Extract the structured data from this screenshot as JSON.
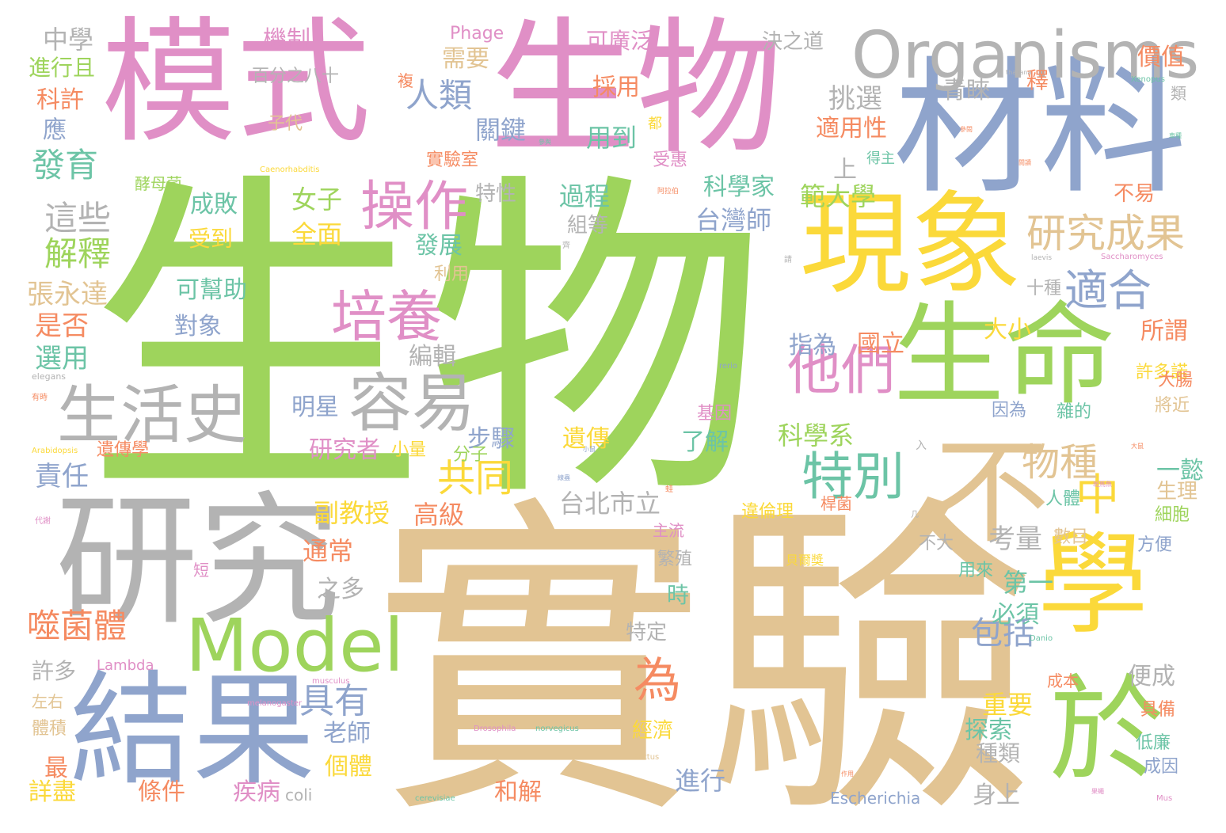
{
  "palette": {
    "green": "#9ED45C",
    "pink": "#E08FC6",
    "blue": "#8FA4CC",
    "gray": "#B3B3B3",
    "tan": "#E2C493",
    "yellow": "#FBD93A",
    "orange": "#F58B62",
    "teal": "#6CC4A6"
  },
  "words": [
    {
      "text": "生物",
      "color": "#9ED45C"
    },
    {
      "text": "實驗",
      "color": "#E2C493"
    },
    {
      "text": "模式",
      "color": "#E08FC6"
    },
    {
      "text": "生物",
      "color": "#E08FC6"
    },
    {
      "text": "材料",
      "color": "#8FA4CC"
    },
    {
      "text": "研究",
      "color": "#B3B3B3"
    },
    {
      "text": "結果",
      "color": "#8FA4CC"
    },
    {
      "text": "Model",
      "color": "#9ED45C"
    },
    {
      "text": "Organisms",
      "color": "#B3B3B3"
    },
    {
      "text": "現象",
      "color": "#FBD93A"
    },
    {
      "text": "生命",
      "color": "#9ED45C"
    },
    {
      "text": "不",
      "color": "#E2C493"
    },
    {
      "text": "學",
      "color": "#FBD93A"
    },
    {
      "text": "於",
      "color": "#9ED45C"
    },
    {
      "text": "生活史",
      "color": "#B3B3B3"
    },
    {
      "text": "容易",
      "color": "#B3B3B3"
    },
    {
      "text": "培養",
      "color": "#E08FC6"
    },
    {
      "text": "操作",
      "color": "#E08FC6"
    },
    {
      "text": "他們",
      "color": "#E08FC6"
    },
    {
      "text": "特別",
      "color": "#6CC4A6"
    },
    {
      "text": "研究成果",
      "color": "#E2C493"
    },
    {
      "text": "適合",
      "color": "#8FA4CC"
    },
    {
      "text": "中",
      "color": "#FBD93A"
    },
    {
      "text": "物種",
      "color": "#E2C493"
    },
    {
      "text": "為",
      "color": "#F58B62"
    },
    {
      "text": "人類",
      "color": "#8FA4CC"
    },
    {
      "text": "發育",
      "color": "#6CC4A6"
    },
    {
      "text": "這些",
      "color": "#B3B3B3"
    },
    {
      "text": "解釋",
      "color": "#9ED45C"
    },
    {
      "text": "噬菌體",
      "color": "#F58B62"
    },
    {
      "text": "具有",
      "color": "#8FA4CC"
    },
    {
      "text": "共同",
      "color": "#FBD93A"
    },
    {
      "text": "包括",
      "color": "#8FA4CC"
    },
    {
      "text": "張永達",
      "color": "#E2C493"
    },
    {
      "text": "是否",
      "color": "#F58B62"
    },
    {
      "text": "選用",
      "color": "#6CC4A6"
    },
    {
      "text": "責任",
      "color": "#8FA4CC"
    },
    {
      "text": "中學",
      "color": "#B3B3B3"
    },
    {
      "text": "進行且",
      "color": "#9ED45C"
    },
    {
      "text": "科許",
      "color": "#F58B62"
    },
    {
      "text": "應",
      "color": "#8FA4CC"
    },
    {
      "text": "機制",
      "color": "#E08FC6"
    },
    {
      "text": "百分之八十",
      "color": "#B3B3B3"
    },
    {
      "text": "Phage",
      "color": "#E08FC6"
    },
    {
      "text": "可廣泛",
      "color": "#E08FC6"
    },
    {
      "text": "決之道",
      "color": "#B3B3B3"
    },
    {
      "text": "價值",
      "color": "#F58B62"
    },
    {
      "text": "需要",
      "color": "#E2C493"
    },
    {
      "text": "採用",
      "color": "#F58B62"
    },
    {
      "text": "挑選",
      "color": "#B3B3B3"
    },
    {
      "text": "青睞",
      "color": "#B3B3B3"
    },
    {
      "text": "複",
      "color": "#F58B62"
    },
    {
      "text": "釋",
      "color": "#F58B62"
    },
    {
      "text": "類",
      "color": "#B3B3B3"
    },
    {
      "text": "子代",
      "color": "#E2C493"
    },
    {
      "text": "關鍵",
      "color": "#8FA4CC"
    },
    {
      "text": "用到",
      "color": "#6CC4A6"
    },
    {
      "text": "適用性",
      "color": "#F58B62"
    },
    {
      "text": "上",
      "color": "#B3B3B3"
    },
    {
      "text": "實驗室",
      "color": "#F58B62"
    },
    {
      "text": "受惠",
      "color": "#E08FC6"
    },
    {
      "text": "得主",
      "color": "#6CC4A6"
    },
    {
      "text": "酵母菌",
      "color": "#9ED45C"
    },
    {
      "text": "成敗",
      "color": "#6CC4A6"
    },
    {
      "text": "女子",
      "color": "#9ED45C"
    },
    {
      "text": "過程",
      "color": "#6CC4A6"
    },
    {
      "text": "科學家",
      "color": "#6CC4A6"
    },
    {
      "text": "範大學",
      "color": "#9ED45C"
    },
    {
      "text": "不易",
      "color": "#F58B62"
    },
    {
      "text": "特性",
      "color": "#B3B3B3"
    },
    {
      "text": "受到",
      "color": "#FBD93A"
    },
    {
      "text": "全面",
      "color": "#FBD93A"
    },
    {
      "text": "組等",
      "color": "#B3B3B3"
    },
    {
      "text": "台灣師",
      "color": "#8FA4CC"
    },
    {
      "text": "發展",
      "color": "#6CC4A6"
    },
    {
      "text": "利用",
      "color": "#E2C493"
    },
    {
      "text": "可幫助",
      "color": "#6CC4A6"
    },
    {
      "text": "對象",
      "color": "#8FA4CC"
    },
    {
      "text": "指為",
      "color": "#8FA4CC"
    },
    {
      "text": "國立",
      "color": "#F58B62"
    },
    {
      "text": "大小",
      "color": "#FBD93A"
    },
    {
      "text": "所謂",
      "color": "#F58B62"
    },
    {
      "text": "十種",
      "color": "#B3B3B3"
    },
    {
      "text": "編輯",
      "color": "#B3B3B3"
    },
    {
      "text": "明星",
      "color": "#8FA4CC"
    },
    {
      "text": "研究者",
      "color": "#E08FC6"
    },
    {
      "text": "步驟",
      "color": "#8FA4CC"
    },
    {
      "text": "科學系",
      "color": "#9ED45C"
    },
    {
      "text": "了解",
      "color": "#6CC4A6"
    },
    {
      "text": "基因",
      "color": "#E08FC6"
    },
    {
      "text": "遺傳",
      "color": "#FBD93A"
    },
    {
      "text": "許多諾",
      "color": "#FBD93A"
    },
    {
      "text": "雜的",
      "color": "#6CC4A6"
    },
    {
      "text": "因為",
      "color": "#8FA4CC"
    },
    {
      "text": "將近",
      "color": "#E2C493"
    },
    {
      "text": "大腸",
      "color": "#F58B62"
    },
    {
      "text": "遺傳學",
      "color": "#F58B62"
    },
    {
      "text": "小量",
      "color": "#FBD93A"
    },
    {
      "text": "分子",
      "color": "#9ED45C"
    },
    {
      "text": "一懿",
      "color": "#6CC4A6"
    },
    {
      "text": "生理",
      "color": "#E2C493"
    },
    {
      "text": "人體",
      "color": "#6CC4A6"
    },
    {
      "text": "細胞",
      "color": "#9ED45C"
    },
    {
      "text": "台北市立",
      "color": "#B3B3B3"
    },
    {
      "text": "副教授",
      "color": "#FBD93A"
    },
    {
      "text": "高級",
      "color": "#F58B62"
    },
    {
      "text": "考量",
      "color": "#B3B3B3"
    },
    {
      "text": "違倫理",
      "color": "#FBD93A"
    },
    {
      "text": "桿菌",
      "color": "#F58B62"
    },
    {
      "text": "數目",
      "color": "#E2C493"
    },
    {
      "text": "不大",
      "color": "#B3B3B3"
    },
    {
      "text": "方便",
      "color": "#8FA4CC"
    },
    {
      "text": "通常",
      "color": "#F58B62"
    },
    {
      "text": "主流",
      "color": "#E08FC6"
    },
    {
      "text": "繁殖",
      "color": "#B3B3B3"
    },
    {
      "text": "貝爾獎",
      "color": "#FBD93A"
    },
    {
      "text": "第一",
      "color": "#6CC4A6"
    },
    {
      "text": "之多",
      "color": "#B3B3B3"
    },
    {
      "text": "時",
      "color": "#6CC4A6"
    },
    {
      "text": "必須",
      "color": "#6CC4A6"
    },
    {
      "text": "用來",
      "color": "#6CC4A6"
    },
    {
      "text": "短",
      "color": "#E08FC6"
    },
    {
      "text": "特定",
      "color": "#B3B3B3"
    },
    {
      "text": "許多",
      "color": "#B3B3B3"
    },
    {
      "text": "Lambda",
      "color": "#E08FC6"
    },
    {
      "text": "左右",
      "color": "#E2C493"
    },
    {
      "text": "便成",
      "color": "#B3B3B3"
    },
    {
      "text": "成本",
      "color": "#F58B62"
    },
    {
      "text": "重要",
      "color": "#FBD93A"
    },
    {
      "text": "具備",
      "color": "#F58B62"
    },
    {
      "text": "體積",
      "color": "#E2C493"
    },
    {
      "text": "探索",
      "color": "#6CC4A6"
    },
    {
      "text": "經濟",
      "color": "#FBD93A"
    },
    {
      "text": "老師",
      "color": "#8FA4CC"
    },
    {
      "text": "低廉",
      "color": "#6CC4A6"
    },
    {
      "text": "最",
      "color": "#F58B62"
    },
    {
      "text": "個體",
      "color": "#FBD93A"
    },
    {
      "text": "種類",
      "color": "#B3B3B3"
    },
    {
      "text": "成因",
      "color": "#8FA4CC"
    },
    {
      "text": "進行",
      "color": "#8FA4CC"
    },
    {
      "text": "詳盡",
      "color": "#FBD93A"
    },
    {
      "text": "條件",
      "color": "#F58B62"
    },
    {
      "text": "疾病",
      "color": "#E08FC6"
    },
    {
      "text": "coli",
      "color": "#B3B3B3"
    },
    {
      "text": "和解",
      "color": "#F58B62"
    },
    {
      "text": "Escherichia",
      "color": "#8FA4CC"
    },
    {
      "text": "身上",
      "color": "#B3B3B3"
    },
    {
      "text": "melanogaster",
      "color": "#E08FC6"
    },
    {
      "text": "musculus",
      "color": "#E08FC6"
    },
    {
      "text": "Drosophila",
      "color": "#E08FC6"
    },
    {
      "text": "norvegicus",
      "color": "#6CC4A6"
    },
    {
      "text": "Rattus",
      "color": "#E2C493"
    },
    {
      "text": "cerevisiae",
      "color": "#6CC4A6"
    },
    {
      "text": "Mus",
      "color": "#E08FC6"
    },
    {
      "text": "Danio",
      "color": "#6CC4A6"
    },
    {
      "text": "rerio",
      "color": "#8FA4CC"
    },
    {
      "text": "elegans",
      "color": "#B3B3B3"
    },
    {
      "text": "Arabidopsis",
      "color": "#FBD93A"
    },
    {
      "text": "Caenorhabditis",
      "color": "#FBD93A"
    },
    {
      "text": "thaliana",
      "color": "#B3B3B3"
    },
    {
      "text": "Xenopus",
      "color": "#6CC4A6"
    },
    {
      "text": "laevis",
      "color": "#B3B3B3"
    },
    {
      "text": "Saccharomyces",
      "color": "#E08FC6"
    },
    {
      "text": "參閱",
      "color": "#F58B62"
    },
    {
      "text": "參與",
      "color": "#6CC4A6"
    },
    {
      "text": "閱讀",
      "color": "#F58B62"
    },
    {
      "text": "車種",
      "color": "#6CC4A6"
    },
    {
      "text": "阿拉伯",
      "color": "#F58B62"
    },
    {
      "text": "小鼠",
      "color": "#8FA4CC"
    },
    {
      "text": "大鼠",
      "color": "#F58B62"
    },
    {
      "text": "斑馬魚",
      "color": "#E08FC6"
    },
    {
      "text": "蛙",
      "color": "#F58B62"
    },
    {
      "text": "作用",
      "color": "#F58B62"
    },
    {
      "text": "果蠅",
      "color": "#E08FC6"
    },
    {
      "text": "線蟲",
      "color": "#8FA4CC"
    },
    {
      "text": "代謝",
      "color": "#E08FC6"
    },
    {
      "text": "有時",
      "color": "#F58B62"
    },
    {
      "text": "入",
      "color": "#B3B3B3"
    },
    {
      "text": "几",
      "color": "#B3B3B3"
    },
    {
      "text": "都",
      "color": "#FBD93A"
    },
    {
      "text": "齊",
      "color": "#B3B3B3"
    },
    {
      "text": "請",
      "color": "#B3B3B3"
    }
  ]
}
